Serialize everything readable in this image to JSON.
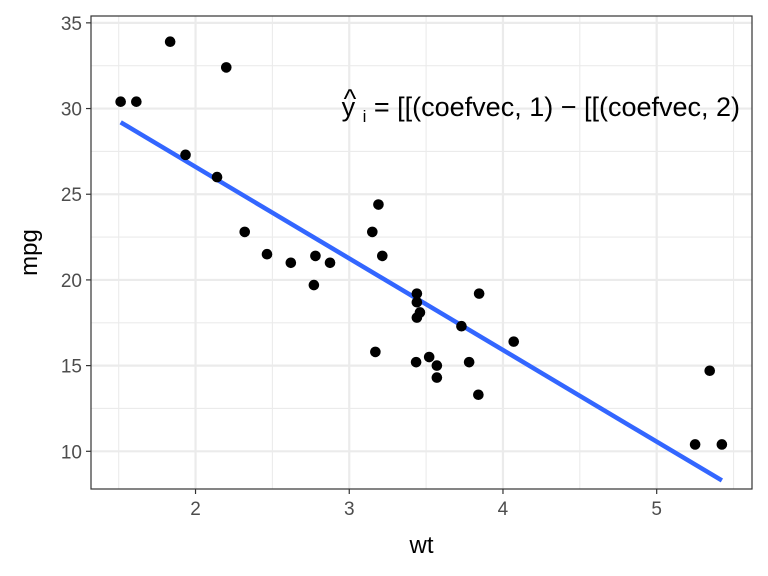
{
  "chart_data": {
    "type": "scatter",
    "xlabel": "wt",
    "ylabel": "mpg",
    "xlim": [
      1.32,
      5.62
    ],
    "ylim": [
      7.8,
      35.4
    ],
    "x_major_ticks": [
      2,
      3,
      4,
      5
    ],
    "x_minor_ticks": [
      1.5,
      2.5,
      3.5,
      4.5,
      5.5
    ],
    "y_major_ticks": [
      10,
      15,
      20,
      25,
      30,
      35
    ],
    "y_minor_ticks": [
      12.5,
      17.5,
      22.5,
      27.5,
      32.5
    ],
    "x_tick_labels": [
      "2",
      "3",
      "4",
      "5"
    ],
    "y_tick_labels": [
      "10",
      "15",
      "20",
      "25",
      "30",
      "35"
    ],
    "grid": true,
    "theme": "bw",
    "point_color": "#000000",
    "line_color": "#3366FF",
    "points": [
      {
        "x": 2.62,
        "y": 21.0
      },
      {
        "x": 2.875,
        "y": 21.0
      },
      {
        "x": 2.32,
        "y": 22.8
      },
      {
        "x": 3.215,
        "y": 21.4
      },
      {
        "x": 3.44,
        "y": 18.7
      },
      {
        "x": 3.46,
        "y": 18.1
      },
      {
        "x": 3.57,
        "y": 14.3
      },
      {
        "x": 3.19,
        "y": 24.4
      },
      {
        "x": 3.15,
        "y": 22.8
      },
      {
        "x": 3.44,
        "y": 19.2
      },
      {
        "x": 3.44,
        "y": 17.8
      },
      {
        "x": 4.07,
        "y": 16.4
      },
      {
        "x": 3.73,
        "y": 17.3
      },
      {
        "x": 3.78,
        "y": 15.2
      },
      {
        "x": 5.25,
        "y": 10.4
      },
      {
        "x": 5.424,
        "y": 10.4
      },
      {
        "x": 5.345,
        "y": 14.7
      },
      {
        "x": 2.2,
        "y": 32.4
      },
      {
        "x": 1.615,
        "y": 30.4
      },
      {
        "x": 1.835,
        "y": 33.9
      },
      {
        "x": 2.465,
        "y": 21.5
      },
      {
        "x": 3.52,
        "y": 15.5
      },
      {
        "x": 3.435,
        "y": 15.2
      },
      {
        "x": 3.84,
        "y": 13.3
      },
      {
        "x": 3.845,
        "y": 19.2
      },
      {
        "x": 1.935,
        "y": 27.3
      },
      {
        "x": 2.14,
        "y": 26.0
      },
      {
        "x": 1.513,
        "y": 30.4
      },
      {
        "x": 3.17,
        "y": 15.8
      },
      {
        "x": 2.77,
        "y": 19.7
      },
      {
        "x": 3.57,
        "y": 15.0
      },
      {
        "x": 2.78,
        "y": 21.4
      }
    ],
    "fit_line": {
      "x": [
        1.513,
        5.424
      ],
      "y": [
        29.199,
        8.297
      ]
    },
    "annotation": {
      "x": 2.95,
      "y": 30.2,
      "hat": "^",
      "var": "y",
      "subscript": "i",
      "text": " = [[(coefvec, 1) − [[(coefvec, 2)"
    }
  }
}
